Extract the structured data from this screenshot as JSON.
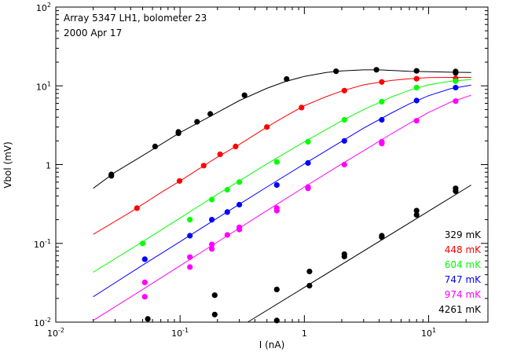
{
  "chart_data": {
    "type": "scatter",
    "annotations": [
      "Array 5347 LH1, bolometer 23",
      "2000 Apr 17"
    ],
    "xlabel": "I (nA)",
    "ylabel": "Vbol (mV)",
    "xscale": "log",
    "yscale": "log",
    "xlim": [
      0.01,
      30
    ],
    "ylim": [
      0.01,
      100
    ],
    "x_ticks": [
      {
        "value": 0.01,
        "base": "10",
        "exp": "-2"
      },
      {
        "value": 0.1,
        "base": "10",
        "exp": "-1"
      },
      {
        "value": 1,
        "base": "1",
        "exp": ""
      },
      {
        "value": 10,
        "base": "10",
        "exp": "1"
      }
    ],
    "y_ticks": [
      {
        "value": 0.01,
        "base": "10",
        "exp": "-2"
      },
      {
        "value": 0.1,
        "base": "10",
        "exp": "-1"
      },
      {
        "value": 1,
        "base": "1",
        "exp": ""
      },
      {
        "value": 10,
        "base": "10",
        "exp": "1"
      },
      {
        "value": 100,
        "base": "10",
        "exp": "2"
      }
    ],
    "grid": false,
    "legend_position": "bottom-right",
    "series": [
      {
        "name": "329 mK",
        "color": "#000000",
        "points": [
          [
            0.028,
            0.75
          ],
          [
            0.028,
            0.72
          ],
          [
            0.063,
            1.7
          ],
          [
            0.097,
            2.6
          ],
          [
            0.097,
            2.5
          ],
          [
            0.137,
            3.5
          ],
          [
            0.175,
            4.4
          ],
          [
            0.33,
            7.6
          ],
          [
            0.72,
            12.2
          ],
          [
            1.8,
            15.3
          ],
          [
            3.8,
            16.0
          ],
          [
            8.0,
            15.5
          ],
          [
            16.5,
            15.2
          ],
          [
            16.5,
            14.6
          ]
        ],
        "curve": [
          [
            0.02,
            0.5
          ],
          [
            0.03,
            0.8
          ],
          [
            0.05,
            1.3
          ],
          [
            0.1,
            2.55
          ],
          [
            0.2,
            4.6
          ],
          [
            0.3,
            6.5
          ],
          [
            0.5,
            9.3
          ],
          [
            0.7,
            11.3
          ],
          [
            1.0,
            13.2
          ],
          [
            1.5,
            14.8
          ],
          [
            2.0,
            15.5
          ],
          [
            3.0,
            15.95
          ],
          [
            4.0,
            15.95
          ],
          [
            5.0,
            15.7
          ],
          [
            7.0,
            15.3
          ],
          [
            10.0,
            15.1
          ],
          [
            15.0,
            14.9
          ],
          [
            22.0,
            14.8
          ]
        ]
      },
      {
        "name": "448 mK",
        "color": "#ff0000",
        "points": [
          [
            0.045,
            0.28
          ],
          [
            0.099,
            0.62
          ],
          [
            0.155,
            0.97
          ],
          [
            0.21,
            1.35
          ],
          [
            0.28,
            1.7
          ],
          [
            0.5,
            3.0
          ],
          [
            0.95,
            5.3
          ],
          [
            2.1,
            8.7
          ],
          [
            4.2,
            11.2
          ],
          [
            8.0,
            12.3
          ],
          [
            16.5,
            12.4
          ]
        ],
        "curve": [
          [
            0.02,
            0.13
          ],
          [
            0.04,
            0.25
          ],
          [
            0.07,
            0.44
          ],
          [
            0.1,
            0.62
          ],
          [
            0.2,
            1.25
          ],
          [
            0.3,
            1.8
          ],
          [
            0.5,
            3.0
          ],
          [
            0.7,
            4.1
          ],
          [
            1.0,
            5.6
          ],
          [
            1.5,
            7.3
          ],
          [
            2.0,
            8.6
          ],
          [
            3.0,
            10.3
          ],
          [
            5.0,
            11.7
          ],
          [
            7.0,
            12.3
          ],
          [
            10.0,
            12.7
          ],
          [
            15.0,
            12.8
          ],
          [
            22.0,
            12.8
          ]
        ]
      },
      {
        "name": "604 mK",
        "color": "#00ff00",
        "points": [
          [
            0.05,
            0.1
          ],
          [
            0.12,
            0.2
          ],
          [
            0.18,
            0.36
          ],
          [
            0.24,
            0.48
          ],
          [
            0.3,
            0.6
          ],
          [
            0.6,
            1.08
          ],
          [
            1.07,
            1.95
          ],
          [
            2.1,
            3.7
          ],
          [
            4.2,
            6.3
          ],
          [
            8.0,
            9.5
          ],
          [
            16.5,
            11.5
          ]
        ],
        "curve": [
          [
            0.02,
            0.043
          ],
          [
            0.05,
            0.105
          ],
          [
            0.1,
            0.21
          ],
          [
            0.2,
            0.42
          ],
          [
            0.3,
            0.62
          ],
          [
            0.5,
            1.02
          ],
          [
            1.0,
            1.95
          ],
          [
            2.0,
            3.6
          ],
          [
            3.0,
            5.0
          ],
          [
            5.0,
            7.2
          ],
          [
            7.0,
            8.8
          ],
          [
            10.0,
            10.3
          ],
          [
            15.0,
            11.5
          ],
          [
            22.0,
            12.0
          ]
        ]
      },
      {
        "name": "747 mK",
        "color": "#0000ff",
        "points": [
          [
            0.052,
            0.063
          ],
          [
            0.12,
            0.125
          ],
          [
            0.18,
            0.2
          ],
          [
            0.24,
            0.25
          ],
          [
            0.3,
            0.31
          ],
          [
            0.6,
            0.55
          ],
          [
            1.07,
            1.05
          ],
          [
            2.1,
            2.0
          ],
          [
            4.2,
            3.7
          ],
          [
            8.0,
            6.5
          ],
          [
            16.5,
            9.5
          ]
        ],
        "curve": [
          [
            0.02,
            0.021
          ],
          [
            0.05,
            0.053
          ],
          [
            0.1,
            0.105
          ],
          [
            0.2,
            0.21
          ],
          [
            0.5,
            0.52
          ],
          [
            1.0,
            1.02
          ],
          [
            2.0,
            1.98
          ],
          [
            3.0,
            2.9
          ],
          [
            5.0,
            4.5
          ],
          [
            7.0,
            5.9
          ],
          [
            10.0,
            7.5
          ],
          [
            15.0,
            9.2
          ],
          [
            22.0,
            10.2
          ]
        ]
      },
      {
        "name": "974 mK",
        "color": "#ff00ff",
        "points": [
          [
            0.052,
            0.032
          ],
          [
            0.052,
            0.021
          ],
          [
            0.12,
            0.067
          ],
          [
            0.12,
            0.05
          ],
          [
            0.18,
            0.097
          ],
          [
            0.18,
            0.085
          ],
          [
            0.24,
            0.128
          ],
          [
            0.3,
            0.16
          ],
          [
            0.3,
            0.15
          ],
          [
            0.6,
            0.28
          ],
          [
            0.6,
            0.26
          ],
          [
            1.07,
            0.52
          ],
          [
            1.07,
            0.5
          ],
          [
            2.1,
            1.0
          ],
          [
            4.2,
            1.95
          ],
          [
            4.2,
            1.85
          ],
          [
            8.0,
            3.6
          ],
          [
            16.5,
            6.4
          ]
        ],
        "curve": [
          [
            0.02,
            0.0105
          ],
          [
            0.05,
            0.026
          ],
          [
            0.1,
            0.052
          ],
          [
            0.2,
            0.104
          ],
          [
            0.5,
            0.26
          ],
          [
            1.0,
            0.52
          ],
          [
            2.0,
            1.02
          ],
          [
            3.0,
            1.5
          ],
          [
            5.0,
            2.45
          ],
          [
            7.0,
            3.35
          ],
          [
            10.0,
            4.6
          ],
          [
            15.0,
            6.2
          ],
          [
            22.0,
            7.6
          ]
        ]
      },
      {
        "name": "4261 mK",
        "color": "#000000",
        "points": [
          [
            0.055,
            0.011
          ],
          [
            0.19,
            0.022
          ],
          [
            0.19,
            0.0125
          ],
          [
            0.6,
            0.026
          ],
          [
            0.6,
            0.0105
          ],
          [
            1.1,
            0.044
          ],
          [
            1.1,
            0.029
          ],
          [
            2.1,
            0.073
          ],
          [
            2.1,
            0.068
          ],
          [
            4.2,
            0.12
          ],
          [
            4.2,
            0.125
          ],
          [
            8.0,
            0.26
          ],
          [
            8.0,
            0.23
          ],
          [
            16.5,
            0.5
          ],
          [
            16.5,
            0.46
          ]
        ],
        "curve": [
          [
            0.35,
            0.01
          ],
          [
            22.0,
            0.55
          ]
        ]
      }
    ]
  }
}
